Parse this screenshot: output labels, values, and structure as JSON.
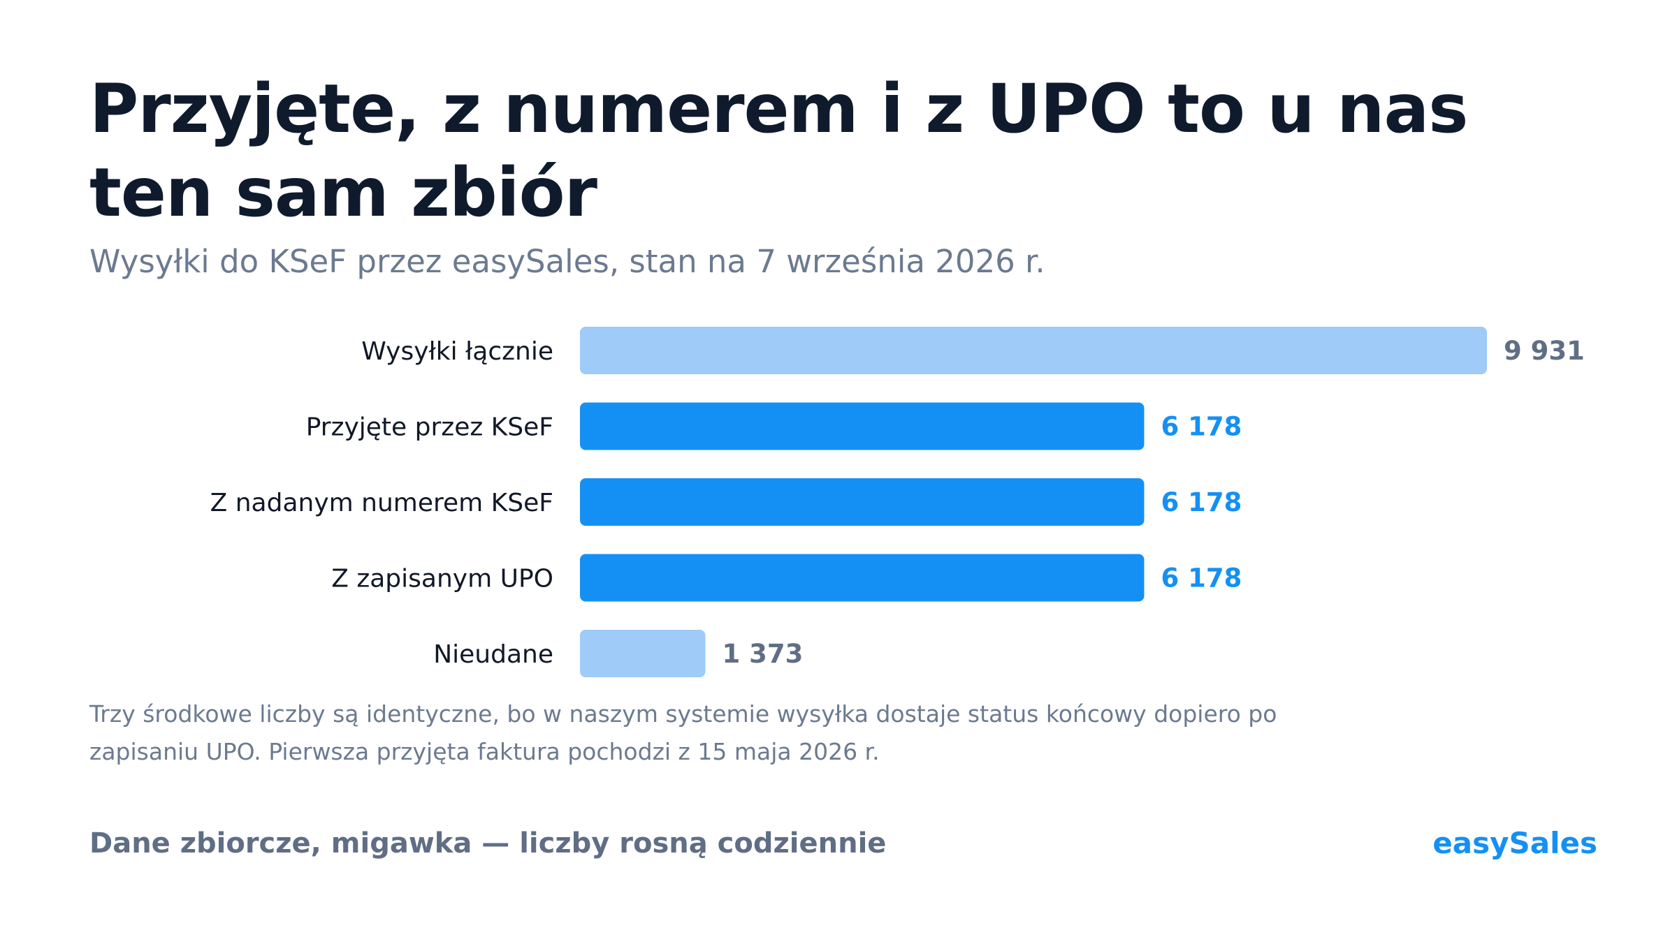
{
  "title": "Przyjęte, z numerem i z UPO to u nas ten sam zbiór",
  "subtitle": "Wysyłki do KSeF przez easySales, stan na 7 września 2026 r.",
  "note": "Trzy środkowe liczby są identyczne, bo w naszym systemie wysyłka dostaje status końcowy dopiero po zapisaniu UPO. Pierwsza przyjęta faktura pochodzi z 15 maja 2026 r.",
  "footer": {
    "left": "Dane zbiorcze, migawka — liczby rosną codziennie",
    "brand": "easySales"
  },
  "colors": {
    "primary": "#1490f5",
    "light": "#9ecbf7",
    "value_light": "#5f6e84"
  },
  "chart_data": {
    "type": "bar",
    "orientation": "horizontal",
    "categories": [
      "Wysyłki łącznie",
      "Przyjęte przez KSeF",
      "Z nadanym numerem KSeF",
      "Z zapisanym UPO",
      "Nieudane"
    ],
    "values": [
      9931,
      6178,
      6178,
      6178,
      1373
    ],
    "value_labels": [
      "9 931",
      "6 178",
      "6 178",
      "6 178",
      "1 373"
    ],
    "highlight": [
      false,
      true,
      true,
      true,
      false
    ],
    "xlim": [
      0,
      9931
    ],
    "grid": false,
    "legend": "none"
  }
}
